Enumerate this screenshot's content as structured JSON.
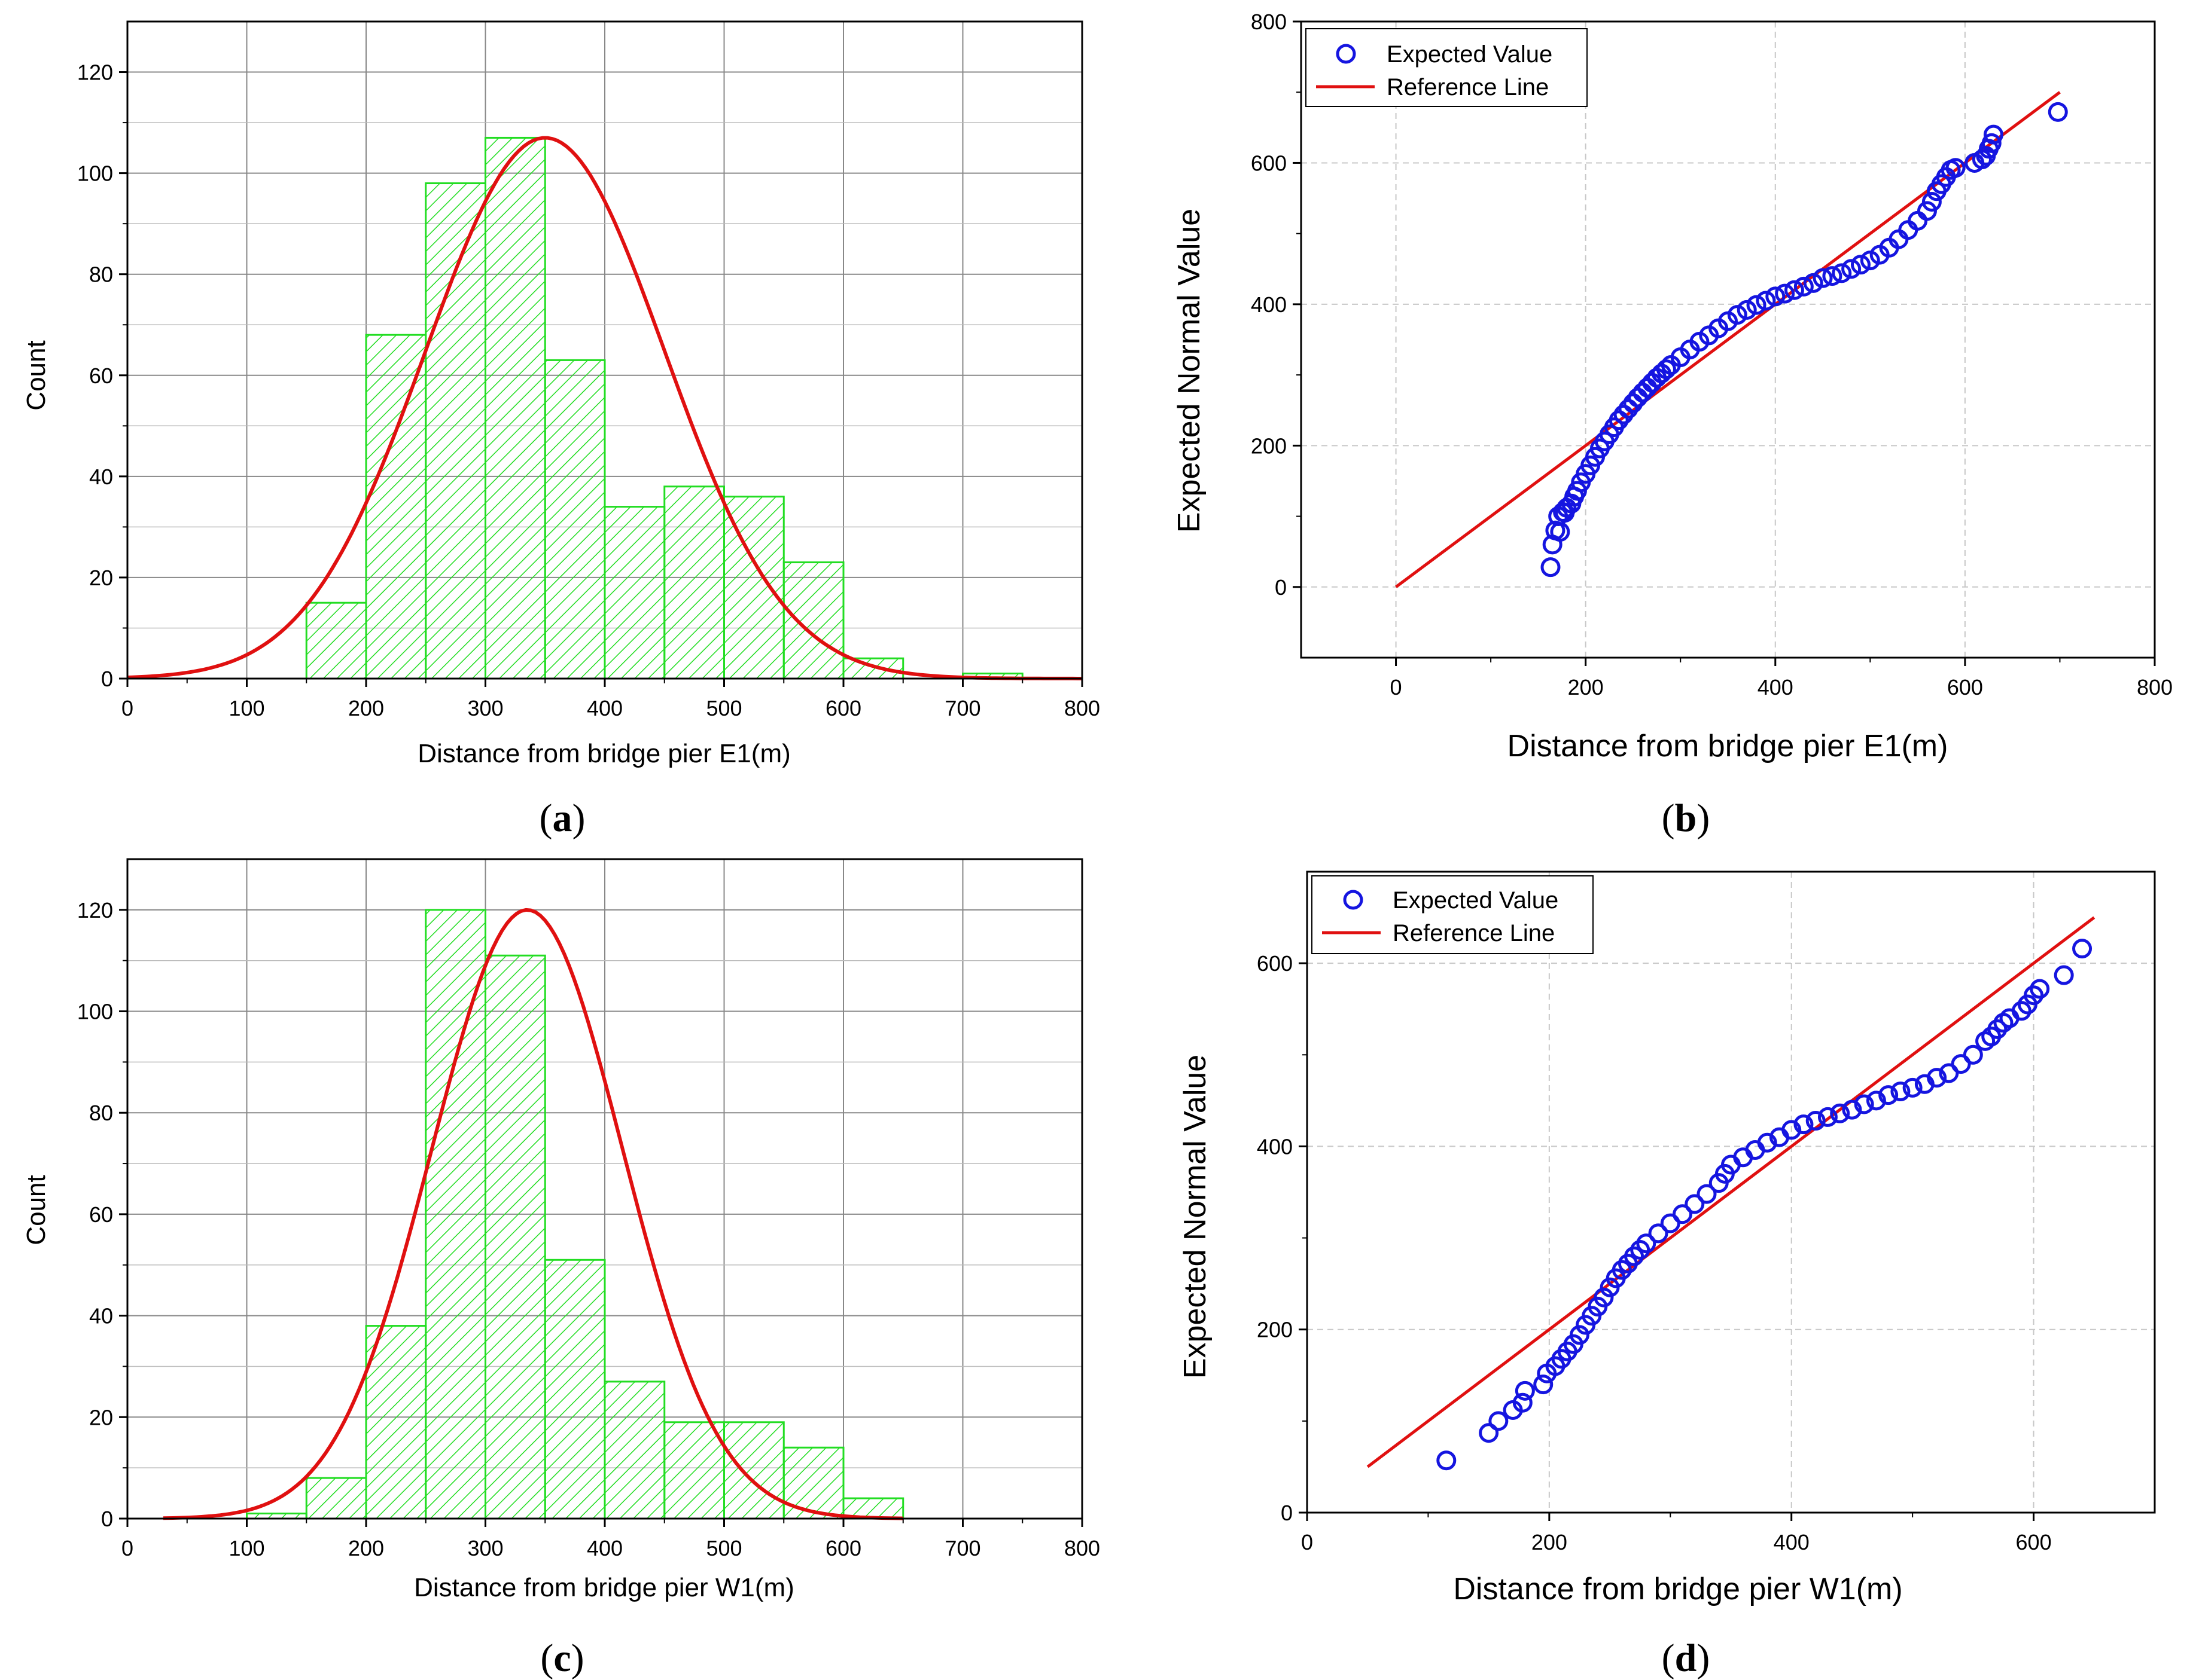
{
  "chart_data": [
    {
      "panel": "a",
      "type": "bar",
      "subtype": "histogram",
      "bin_edges": [
        150,
        200,
        250,
        300,
        350,
        400,
        450,
        500,
        550,
        600,
        650,
        700,
        750
      ],
      "values": [
        15,
        68,
        98,
        107,
        63,
        34,
        38,
        36,
        23,
        4,
        0,
        1
      ],
      "fit": {
        "type": "normal",
        "mean": 350,
        "sd": 100,
        "peak": 107
      },
      "xlabel": "Distance from bridge pier E1(m)",
      "ylabel": "Count",
      "xlim": [
        0,
        800
      ],
      "ylim": [
        0,
        130
      ],
      "xticks": [
        0,
        100,
        200,
        300,
        400,
        500,
        600,
        700,
        800
      ],
      "yticks": [
        0,
        20,
        40,
        60,
        80,
        100,
        120
      ],
      "colors": {
        "bar": "#22dd22",
        "fit": "#e01010"
      }
    },
    {
      "panel": "b",
      "type": "scatter",
      "subtype": "normal Q-Q",
      "points": [
        [
          163,
          28
        ],
        [
          165,
          60
        ],
        [
          168,
          80
        ],
        [
          171,
          100
        ],
        [
          173,
          78
        ],
        [
          176,
          106
        ],
        [
          178,
          105
        ],
        [
          180,
          112
        ],
        [
          185,
          118
        ],
        [
          188,
          128
        ],
        [
          191,
          136
        ],
        [
          195,
          148
        ],
        [
          200,
          160
        ],
        [
          205,
          172
        ],
        [
          210,
          184
        ],
        [
          215,
          196
        ],
        [
          220,
          206
        ],
        [
          225,
          216
        ],
        [
          230,
          226
        ],
        [
          235,
          236
        ],
        [
          240,
          244
        ],
        [
          245,
          252
        ],
        [
          250,
          260
        ],
        [
          255,
          268
        ],
        [
          260,
          275
        ],
        [
          265,
          282
        ],
        [
          270,
          289
        ],
        [
          275,
          296
        ],
        [
          280,
          302
        ],
        [
          285,
          308
        ],
        [
          290,
          314
        ],
        [
          300,
          325
        ],
        [
          310,
          336
        ],
        [
          320,
          347
        ],
        [
          330,
          356
        ],
        [
          340,
          366
        ],
        [
          350,
          376
        ],
        [
          360,
          385
        ],
        [
          370,
          392
        ],
        [
          380,
          399
        ],
        [
          390,
          405
        ],
        [
          400,
          411
        ],
        [
          410,
          415
        ],
        [
          420,
          420
        ],
        [
          430,
          425
        ],
        [
          440,
          430
        ],
        [
          450,
          437
        ],
        [
          460,
          440
        ],
        [
          470,
          444
        ],
        [
          480,
          450
        ],
        [
          490,
          456
        ],
        [
          500,
          462
        ],
        [
          510,
          470
        ],
        [
          520,
          480
        ],
        [
          530,
          492
        ],
        [
          540,
          505
        ],
        [
          550,
          518
        ],
        [
          560,
          532
        ],
        [
          565,
          545
        ],
        [
          570,
          560
        ],
        [
          575,
          570
        ],
        [
          580,
          580
        ],
        [
          585,
          590
        ],
        [
          590,
          593
        ],
        [
          610,
          600
        ],
        [
          618,
          605
        ],
        [
          622,
          610
        ],
        [
          625,
          620
        ],
        [
          628,
          628
        ],
        [
          630,
          640
        ],
        [
          698,
          672
        ]
      ],
      "series_name": "Expected Value",
      "reference_line": {
        "name": "Reference Line",
        "x": [
          0,
          700
        ],
        "y": [
          0,
          700
        ]
      },
      "xlabel": "Distance from bridge pier E1(m)",
      "ylabel": "Expected Normal Value",
      "xlim": [
        -100,
        800
      ],
      "ylim": [
        -100,
        800
      ],
      "xticks": [
        0,
        200,
        400,
        600,
        800
      ],
      "yticks": [
        0,
        200,
        400,
        600,
        800
      ],
      "legend": "top-left",
      "colors": {
        "marker": "#1515e0",
        "line": "#e01010"
      }
    },
    {
      "panel": "c",
      "type": "bar",
      "subtype": "histogram",
      "bin_edges": [
        100,
        150,
        200,
        250,
        300,
        350,
        400,
        450,
        500,
        550,
        600,
        650
      ],
      "values": [
        1,
        8,
        38,
        120,
        111,
        51,
        27,
        19,
        19,
        14,
        4
      ],
      "fit": {
        "type": "normal",
        "mean": 335,
        "sd": 80,
        "peak": 120
      },
      "xlabel": "Distance from bridge pier W1(m)",
      "ylabel": "Count",
      "xlim": [
        0,
        800
      ],
      "ylim": [
        0,
        130
      ],
      "xticks": [
        0,
        100,
        200,
        300,
        400,
        500,
        600,
        700,
        800
      ],
      "yticks": [
        0,
        20,
        40,
        60,
        80,
        100,
        120
      ],
      "colors": {
        "bar": "#22dd22",
        "fit": "#e01010"
      }
    },
    {
      "panel": "d",
      "type": "scatter",
      "subtype": "normal Q-Q",
      "points": [
        [
          115,
          57
        ],
        [
          150,
          87
        ],
        [
          158,
          100
        ],
        [
          170,
          112
        ],
        [
          178,
          120
        ],
        [
          180,
          133
        ],
        [
          195,
          140
        ],
        [
          198,
          152
        ],
        [
          205,
          160
        ],
        [
          210,
          168
        ],
        [
          215,
          176
        ],
        [
          220,
          184
        ],
        [
          225,
          194
        ],
        [
          230,
          205
        ],
        [
          235,
          215
        ],
        [
          240,
          225
        ],
        [
          245,
          235
        ],
        [
          250,
          246
        ],
        [
          255,
          256
        ],
        [
          260,
          265
        ],
        [
          265,
          272
        ],
        [
          270,
          280
        ],
        [
          275,
          287
        ],
        [
          280,
          294
        ],
        [
          290,
          305
        ],
        [
          300,
          316
        ],
        [
          310,
          326
        ],
        [
          320,
          337
        ],
        [
          330,
          348
        ],
        [
          340,
          360
        ],
        [
          345,
          370
        ],
        [
          350,
          380
        ],
        [
          360,
          388
        ],
        [
          370,
          396
        ],
        [
          380,
          404
        ],
        [
          390,
          410
        ],
        [
          400,
          418
        ],
        [
          410,
          424
        ],
        [
          420,
          428
        ],
        [
          430,
          432
        ],
        [
          440,
          436
        ],
        [
          450,
          440
        ],
        [
          460,
          446
        ],
        [
          470,
          450
        ],
        [
          480,
          456
        ],
        [
          490,
          460
        ],
        [
          500,
          464
        ],
        [
          510,
          468
        ],
        [
          520,
          475
        ],
        [
          530,
          480
        ],
        [
          540,
          490
        ],
        [
          550,
          500
        ],
        [
          560,
          515
        ],
        [
          565,
          520
        ],
        [
          570,
          528
        ],
        [
          575,
          535
        ],
        [
          580,
          540
        ],
        [
          590,
          548
        ],
        [
          595,
          555
        ],
        [
          600,
          565
        ],
        [
          605,
          572
        ],
        [
          625,
          587
        ],
        [
          640,
          616
        ]
      ],
      "series_name": "Expected Value",
      "reference_line": {
        "name": "Reference Line",
        "x": [
          50,
          650
        ],
        "y": [
          50,
          650
        ]
      },
      "xlabel": "Distance from bridge pier W1(m)",
      "ylabel": "Expected Normal Value",
      "xlim": [
        0,
        700
      ],
      "ylim": [
        0,
        700
      ],
      "xticks": [
        0,
        200,
        400,
        600
      ],
      "yticks": [
        0,
        200,
        400,
        600
      ],
      "legend": "top-left",
      "colors": {
        "marker": "#1515e0",
        "line": "#e01010"
      }
    }
  ],
  "panel_labels": {
    "a": "a",
    "b": "b",
    "c": "c",
    "d": "d"
  }
}
